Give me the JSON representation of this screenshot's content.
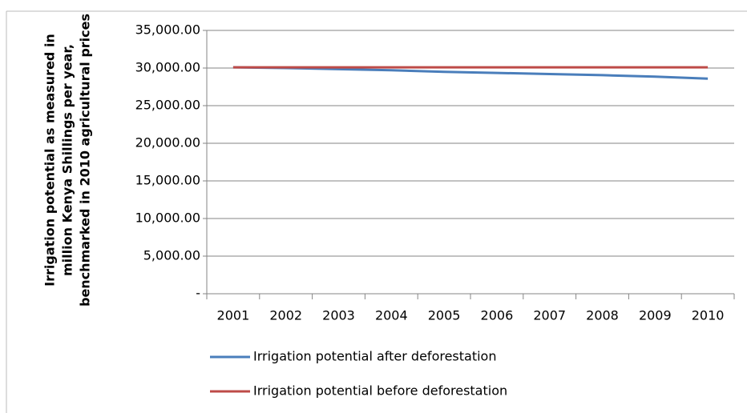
{
  "chart_data": {
    "type": "line",
    "ylabel": [
      "Irrigation potential as measured in",
      "million Kenya Shillings per year,",
      "benchmarked in 2010 agricultural prices"
    ],
    "categories": [
      "2001",
      "2002",
      "2003",
      "2004",
      "2005",
      "2006",
      "2007",
      "2008",
      "2009",
      "2010"
    ],
    "series": [
      {
        "name": "Irrigation potential after deforestation",
        "color": "#4a7ebb",
        "values": [
          30100,
          30000,
          29850,
          29700,
          29500,
          29350,
          29200,
          29050,
          28850,
          28600
        ]
      },
      {
        "name": "Irrigation potential before deforestation",
        "color": "#be4b48",
        "values": [
          30100,
          30100,
          30100,
          30100,
          30100,
          30100,
          30100,
          30100,
          30100,
          30100
        ]
      }
    ],
    "ylim": [
      0,
      35000
    ],
    "yticks": [
      {
        "value": 0,
        "label": "-"
      },
      {
        "value": 5000,
        "label": "5,000.00"
      },
      {
        "value": 10000,
        "label": "10,000.00"
      },
      {
        "value": 15000,
        "label": "15,000.00"
      },
      {
        "value": 20000,
        "label": "20,000.00"
      },
      {
        "value": 25000,
        "label": "25,000.00"
      },
      {
        "value": 30000,
        "label": "30,000.00"
      },
      {
        "value": 35000,
        "label": "35,000.00"
      }
    ],
    "grid": true,
    "legend": "bottom"
  }
}
